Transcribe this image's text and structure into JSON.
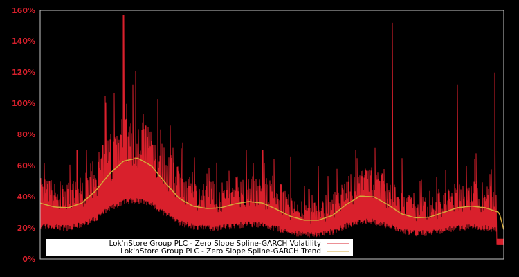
{
  "chart_data": {
    "type": "line",
    "title": "",
    "xlabel": "",
    "ylabel": "",
    "ylim": [
      0,
      160
    ],
    "y_ticks": [
      "0%",
      "20%",
      "40%",
      "60%",
      "80%",
      "100%",
      "120%",
      "140%",
      "160%"
    ],
    "grid": false,
    "legend_position": "lower-left inside",
    "background": "#000000",
    "axis_color": "#c8c8c8",
    "tick_color": "#d9202c",
    "series": [
      {
        "name": "Lok'nStore Group PLC - Zero Slope Spline-GARCH Volatility",
        "color": "#d9202c",
        "note": "daily volatility spikes; notable peaks ~157% (left cluster) ~152% (right), ~120% (end), ~112%",
        "x": [
          0.0,
          0.02,
          0.04,
          0.06,
          0.08,
          0.1,
          0.12,
          0.14,
          0.16,
          0.18,
          0.2,
          0.22,
          0.24,
          0.26,
          0.28,
          0.3,
          0.32,
          0.34,
          0.36,
          0.38,
          0.4,
          0.42,
          0.44,
          0.46,
          0.48,
          0.5,
          0.52,
          0.54,
          0.56,
          0.58,
          0.6,
          0.62,
          0.64,
          0.66,
          0.68,
          0.7,
          0.72,
          0.74,
          0.76,
          0.78,
          0.8,
          0.82,
          0.84,
          0.86,
          0.88,
          0.9,
          0.92,
          0.94,
          0.96,
          0.98,
          1.0
        ],
        "values": [
          20,
          50,
          30,
          45,
          70,
          28,
          40,
          105,
          60,
          157,
          112,
          74,
          40,
          83,
          30,
          55,
          47,
          28,
          55,
          62,
          25,
          40,
          30,
          45,
          70,
          35,
          48,
          66,
          30,
          45,
          60,
          20,
          30,
          28,
          70,
          35,
          25,
          50,
          152,
          65,
          40,
          50,
          30,
          45,
          43,
          112,
          60,
          68,
          40,
          120,
          10
        ]
      },
      {
        "name": "Lok'nStore Group PLC - Zero Slope Spline-GARCH Trend",
        "color": "#d4a93a",
        "x": [
          0.0,
          0.03,
          0.06,
          0.09,
          0.12,
          0.15,
          0.18,
          0.21,
          0.24,
          0.27,
          0.3,
          0.33,
          0.36,
          0.39,
          0.42,
          0.45,
          0.48,
          0.51,
          0.54,
          0.57,
          0.6,
          0.63,
          0.66,
          0.69,
          0.72,
          0.75,
          0.78,
          0.81,
          0.84,
          0.87,
          0.9,
          0.93,
          0.96,
          0.99,
          1.0
        ],
        "values": [
          36,
          33.5,
          33,
          36,
          44,
          55,
          63,
          65,
          60,
          49,
          39,
          34,
          32.5,
          33,
          35.5,
          37,
          36,
          32,
          27.5,
          25,
          25,
          28,
          35,
          40.5,
          40,
          35,
          29,
          26.5,
          27,
          30,
          33,
          34,
          33,
          30,
          19
        ]
      }
    ]
  },
  "legend": {
    "items": [
      {
        "label": "Lok'nStore Group PLC - Zero Slope Spline-GARCH Volatility",
        "color": "#d9202c"
      },
      {
        "label": "Lok'nStore Group PLC - Zero Slope Spline-GARCH Trend",
        "color": "#d4a93a"
      }
    ]
  },
  "axis": {
    "y_labels": [
      "0%",
      "20%",
      "40%",
      "60%",
      "80%",
      "100%",
      "120%",
      "140%",
      "160%"
    ]
  }
}
